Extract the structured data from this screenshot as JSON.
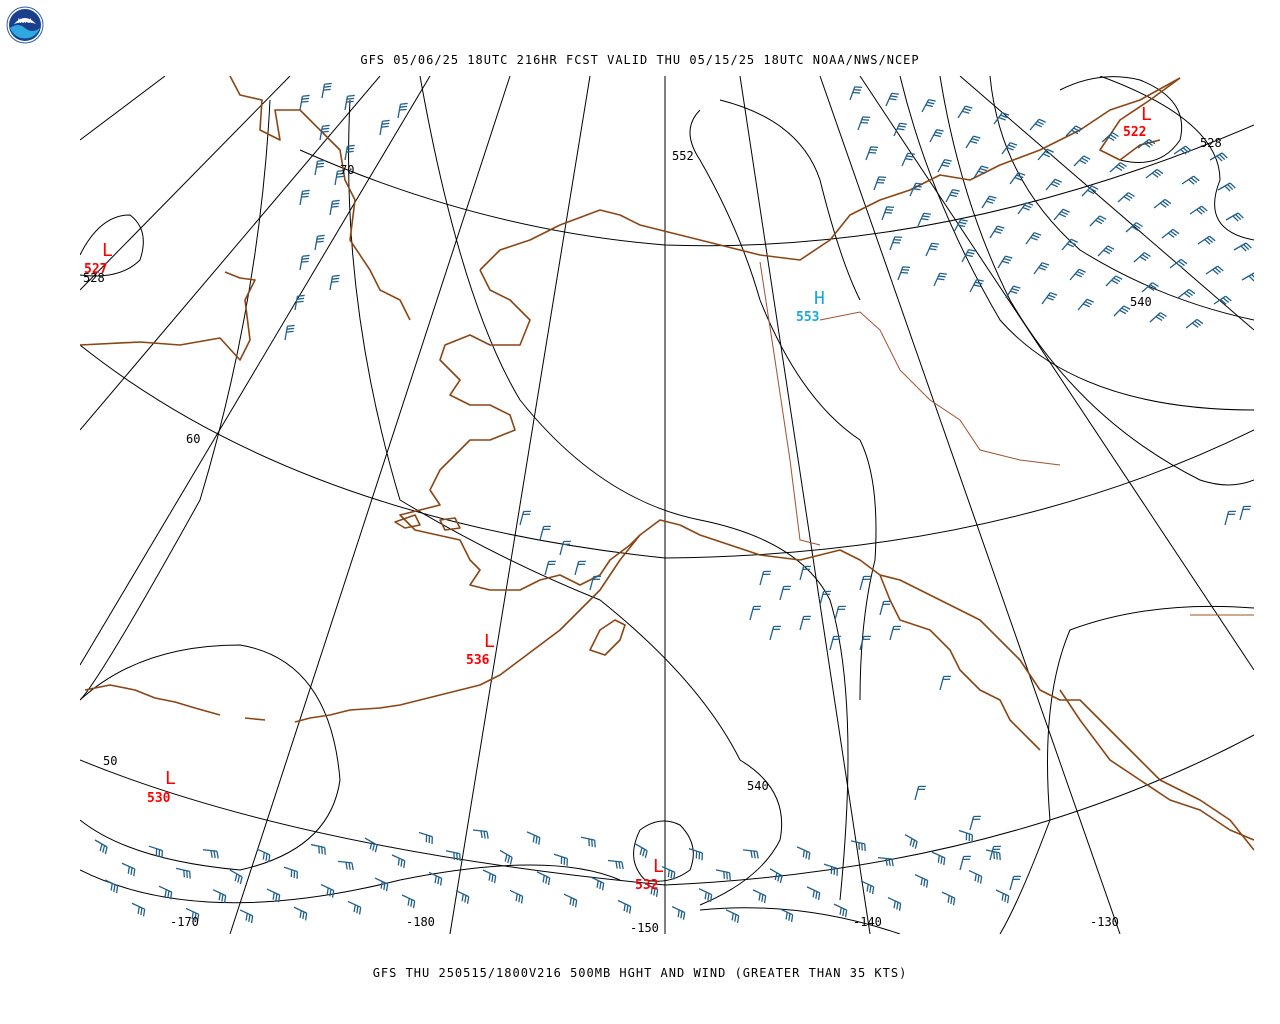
{
  "header": {
    "title": "GFS 05/06/25 18UTC 216HR FCST VALID THU 05/15/25 18UTC NOAA/NWS/NCEP",
    "footer": "GFS THU 250515/1800V216 500MB HGHT AND WIND (GREATER THAN 35 KTS)",
    "logo_text": "NOAA"
  },
  "colors": {
    "coast": "#8B4513",
    "low": "#ff0000",
    "high": "#1ba9dc",
    "barb": "#1f5f8b",
    "grid": "#000000"
  },
  "lat_labels": [
    "70",
    "60",
    "50"
  ],
  "lon_labels": [
    "-170",
    "-180",
    "-150",
    "-140",
    "-130"
  ],
  "contour_labels": [
    "552",
    "528",
    "540",
    "528",
    "540"
  ],
  "pressure_centers": [
    {
      "kind": "L",
      "value": "527",
      "color": "#ff0000"
    },
    {
      "kind": "L",
      "value": "522",
      "color": "#ff0000"
    },
    {
      "kind": "H",
      "value": "553",
      "color": "#1ba9dc"
    },
    {
      "kind": "L",
      "value": "536",
      "color": "#ff0000"
    },
    {
      "kind": "L",
      "value": "530",
      "color": "#ff0000"
    },
    {
      "kind": "L",
      "value": "532",
      "color": "#ff0000"
    }
  ]
}
